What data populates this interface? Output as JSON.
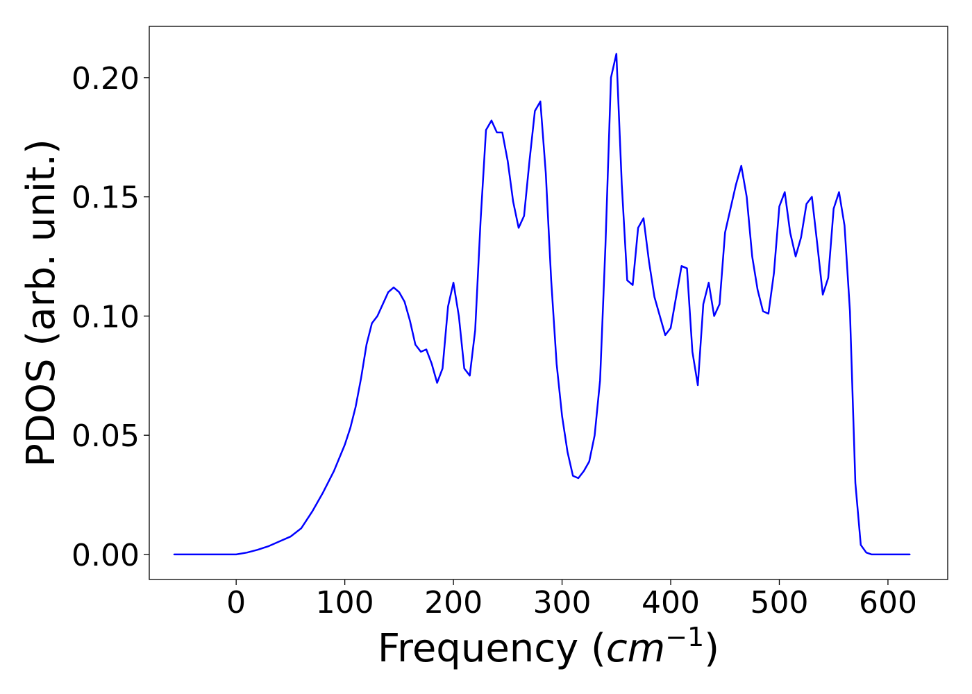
{
  "chart_data": {
    "type": "line",
    "title": "",
    "xlabel_text": "Frequency (",
    "xlabel_math_base": "cm",
    "xlabel_math_exp": "−1",
    "xlabel_close": ")",
    "ylabel": "PDOS (arb. unit.)",
    "xlim": [
      -80,
      655
    ],
    "ylim": [
      -0.0105,
      0.2215
    ],
    "xticks": [
      0,
      100,
      200,
      300,
      400,
      500,
      600
    ],
    "xtick_labels": [
      "0",
      "100",
      "200",
      "300",
      "400",
      "500",
      "600"
    ],
    "yticks": [
      0.0,
      0.05,
      0.1,
      0.15,
      0.2
    ],
    "ytick_labels": [
      "0.00",
      "0.05",
      "0.10",
      "0.15",
      "0.20"
    ],
    "grid": false,
    "series": [
      {
        "color": "#0000ff",
        "x": [
          -57,
          0,
          10,
          20,
          30,
          40,
          50,
          60,
          70,
          80,
          90,
          100,
          105,
          110,
          115,
          120,
          125,
          130,
          135,
          140,
          145,
          150,
          155,
          160,
          165,
          170,
          175,
          180,
          185,
          190,
          195,
          200,
          205,
          210,
          215,
          220,
          225,
          230,
          235,
          240,
          245,
          250,
          255,
          260,
          265,
          270,
          275,
          280,
          285,
          290,
          295,
          300,
          305,
          310,
          315,
          320,
          325,
          330,
          335,
          340,
          345,
          350,
          355,
          360,
          365,
          370,
          375,
          380,
          385,
          390,
          395,
          400,
          405,
          410,
          415,
          420,
          425,
          430,
          435,
          440,
          445,
          450,
          455,
          460,
          465,
          470,
          475,
          480,
          485,
          490,
          495,
          500,
          505,
          510,
          515,
          520,
          525,
          530,
          535,
          540,
          545,
          550,
          555,
          560,
          565,
          570,
          575,
          580,
          585,
          620
        ],
        "y": [
          0.0,
          0.0,
          0.0008,
          0.002,
          0.0035,
          0.0055,
          0.0075,
          0.011,
          0.018,
          0.026,
          0.035,
          0.046,
          0.053,
          0.062,
          0.074,
          0.088,
          0.097,
          0.1,
          0.105,
          0.11,
          0.112,
          0.11,
          0.106,
          0.098,
          0.088,
          0.085,
          0.086,
          0.08,
          0.072,
          0.078,
          0.104,
          0.114,
          0.1,
          0.078,
          0.075,
          0.094,
          0.14,
          0.178,
          0.182,
          0.177,
          0.177,
          0.165,
          0.148,
          0.137,
          0.142,
          0.165,
          0.186,
          0.19,
          0.16,
          0.115,
          0.08,
          0.058,
          0.043,
          0.033,
          0.032,
          0.035,
          0.039,
          0.05,
          0.073,
          0.13,
          0.2,
          0.21,
          0.155,
          0.115,
          0.113,
          0.137,
          0.141,
          0.123,
          0.108,
          0.1,
          0.092,
          0.095,
          0.108,
          0.121,
          0.12,
          0.085,
          0.071,
          0.105,
          0.114,
          0.1,
          0.105,
          0.135,
          0.145,
          0.155,
          0.163,
          0.15,
          0.125,
          0.111,
          0.102,
          0.101,
          0.118,
          0.146,
          0.152,
          0.135,
          0.125,
          0.133,
          0.147,
          0.15,
          0.13,
          0.109,
          0.116,
          0.145,
          0.152,
          0.138,
          0.102,
          0.03,
          0.004,
          0.0008,
          0.0,
          0.0
        ]
      }
    ]
  }
}
